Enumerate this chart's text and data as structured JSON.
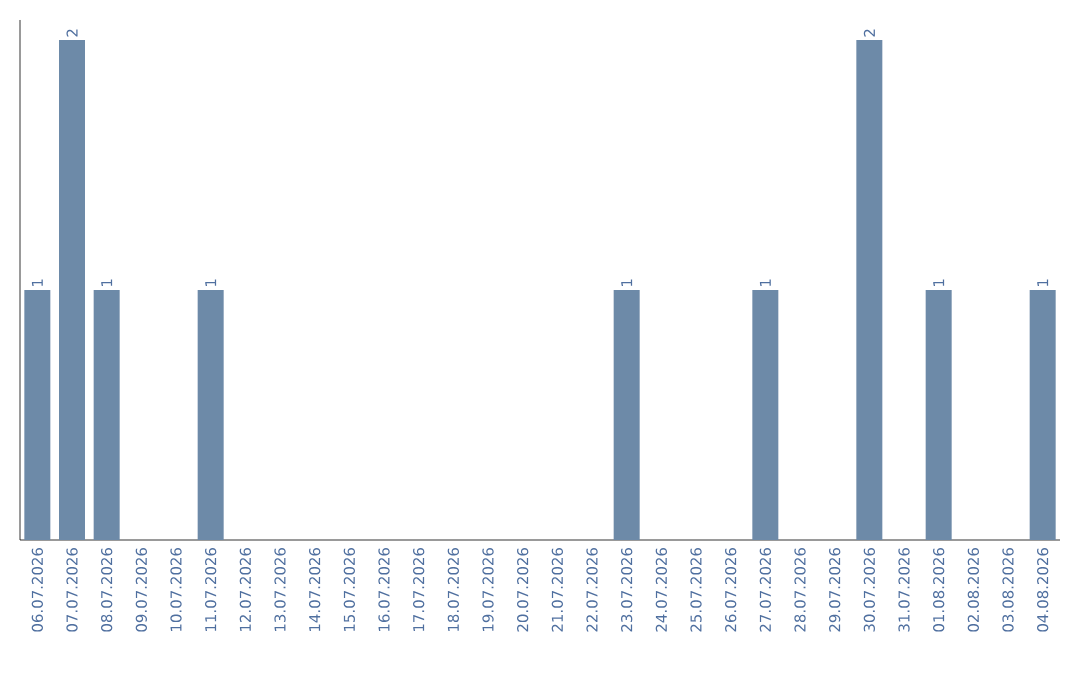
{
  "chart_data": {
    "type": "bar",
    "categories": [
      "06.07.2026",
      "07.07.2026",
      "08.07.2026",
      "09.07.2026",
      "10.07.2026",
      "11.07.2026",
      "12.07.2026",
      "13.07.2026",
      "14.07.2026",
      "15.07.2026",
      "16.07.2026",
      "17.07.2026",
      "18.07.2026",
      "19.07.2026",
      "20.07.2026",
      "21.07.2026",
      "22.07.2026",
      "23.07.2026",
      "24.07.2026",
      "25.07.2026",
      "26.07.2026",
      "27.07.2026",
      "28.07.2026",
      "29.07.2026",
      "30.07.2026",
      "31.07.2026",
      "01.08.2026",
      "02.08.2026",
      "03.08.2026",
      "04.08.2026"
    ],
    "values": [
      1,
      2,
      1,
      0,
      0,
      1,
      0,
      0,
      0,
      0,
      0,
      0,
      0,
      0,
      0,
      0,
      0,
      1,
      0,
      0,
      0,
      1,
      0,
      0,
      2,
      0,
      1,
      0,
      0,
      1
    ],
    "value_labels": [
      "1",
      "2",
      "1",
      null,
      null,
      "1",
      null,
      null,
      null,
      null,
      null,
      null,
      null,
      null,
      null,
      null,
      null,
      "1",
      null,
      null,
      null,
      "1",
      null,
      null,
      "2",
      null,
      "1",
      null,
      null,
      "1"
    ],
    "color": "#6d8aa8",
    "grid": false
  }
}
